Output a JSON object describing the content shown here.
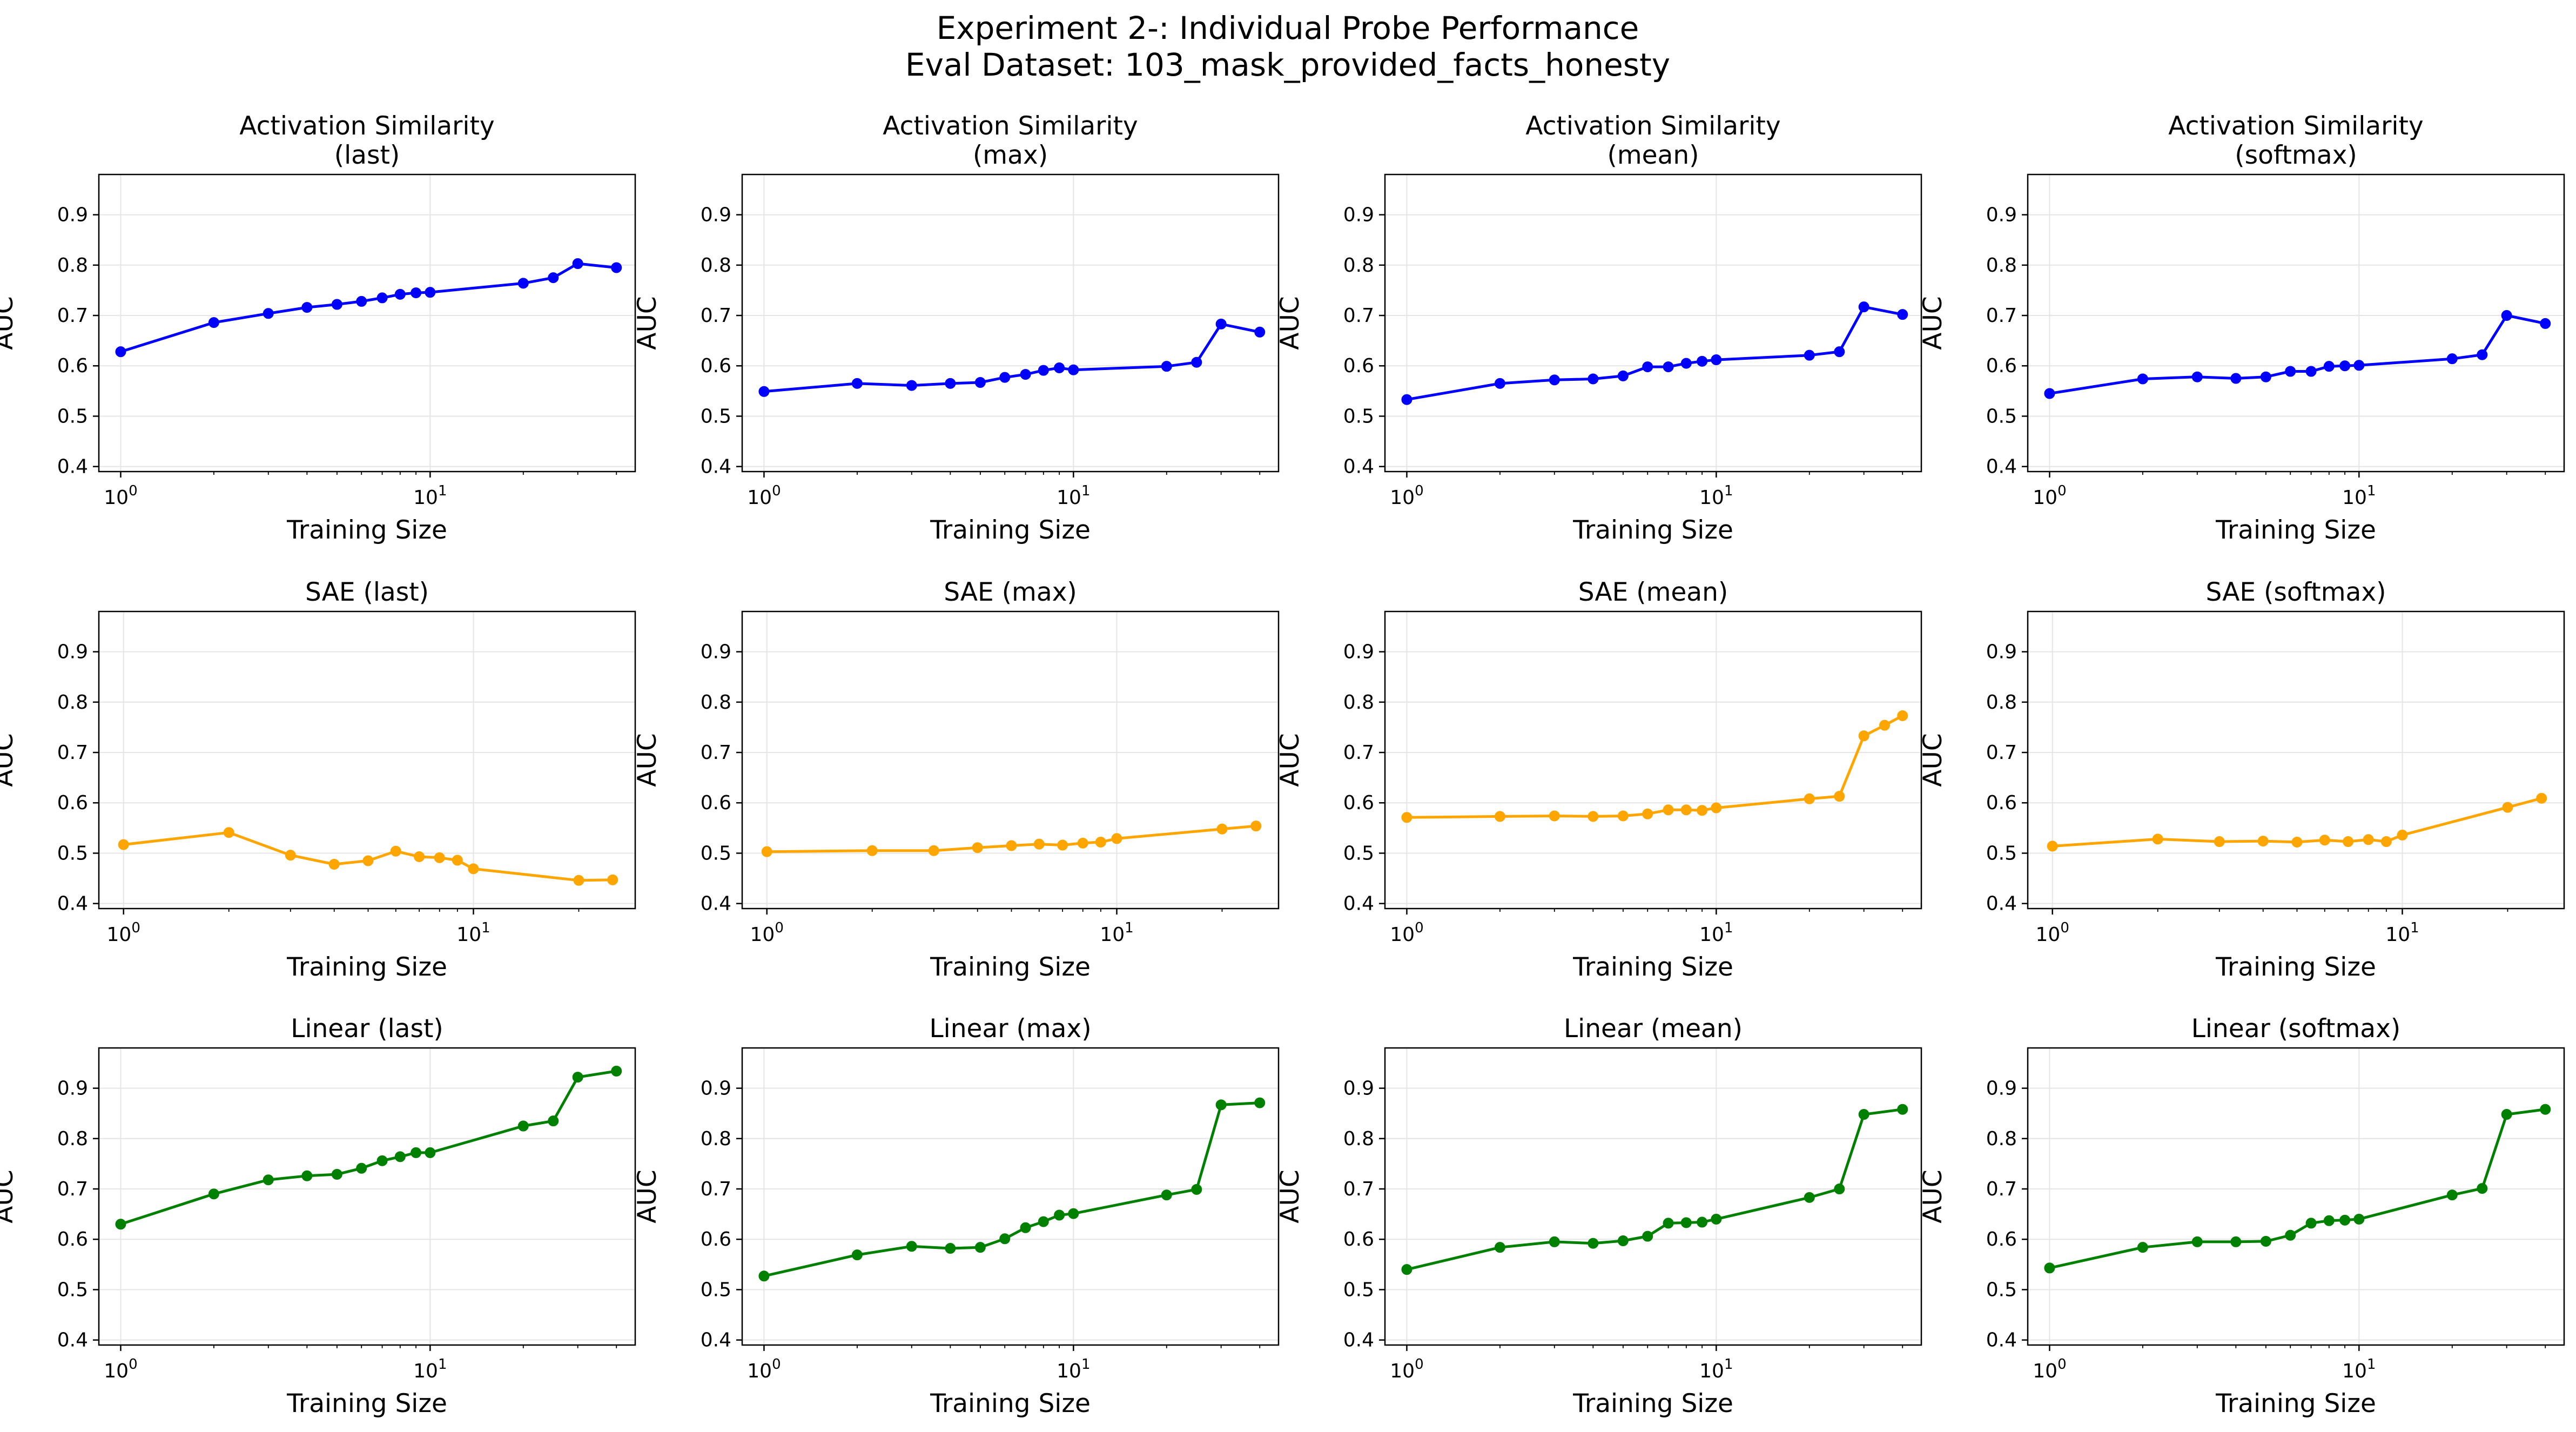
{
  "figure": {
    "title_line1": "Experiment 2-: Individual Probe Performance",
    "title_line2": "Eval Dataset: 103_mask_provided_facts_honesty"
  },
  "colors": {
    "activation": "#0000ff",
    "sae": "#ffa500",
    "linear": "#008000",
    "grid": "#e5e5e5",
    "axes": "#000000"
  },
  "chart_data": [
    {
      "type": "line",
      "title": "Activation Similarity\n(last)",
      "xlabel": "Training Size",
      "ylabel": "AUC",
      "xscale": "log",
      "xlim": [
        0.85,
        46
      ],
      "ylim": [
        0.39,
        0.98
      ],
      "yticks": [
        0.4,
        0.5,
        0.6,
        0.7,
        0.8,
        0.9
      ],
      "xticks": [
        "10^0",
        "10^1"
      ],
      "grid": true,
      "color": "blue",
      "marker": "circle",
      "x": [
        1,
        2,
        3,
        4,
        5,
        6,
        7,
        8,
        9,
        10,
        20,
        25,
        30,
        40
      ],
      "y": [
        0.628,
        0.686,
        0.704,
        0.716,
        0.722,
        0.728,
        0.735,
        0.742,
        0.745,
        0.746,
        0.764,
        0.775,
        0.803,
        0.795
      ]
    },
    {
      "type": "line",
      "title": "Activation Similarity\n(max)",
      "xlabel": "Training Size",
      "ylabel": "AUC",
      "xscale": "log",
      "xlim": [
        0.85,
        46
      ],
      "ylim": [
        0.39,
        0.98
      ],
      "yticks": [
        0.4,
        0.5,
        0.6,
        0.7,
        0.8,
        0.9
      ],
      "xticks": [
        "10^0",
        "10^1"
      ],
      "grid": true,
      "color": "blue",
      "marker": "circle",
      "x": [
        1,
        2,
        3,
        4,
        5,
        6,
        7,
        8,
        9,
        10,
        20,
        25,
        30,
        40
      ],
      "y": [
        0.549,
        0.565,
        0.561,
        0.565,
        0.567,
        0.577,
        0.583,
        0.591,
        0.596,
        0.592,
        0.599,
        0.607,
        0.683,
        0.667
      ]
    },
    {
      "type": "line",
      "title": "Activation Similarity\n(mean)",
      "xlabel": "Training Size",
      "ylabel": "AUC",
      "xscale": "log",
      "xlim": [
        0.85,
        46
      ],
      "ylim": [
        0.39,
        0.98
      ],
      "yticks": [
        0.4,
        0.5,
        0.6,
        0.7,
        0.8,
        0.9
      ],
      "xticks": [
        "10^0",
        "10^1"
      ],
      "grid": true,
      "color": "blue",
      "marker": "circle",
      "x": [
        1,
        2,
        3,
        4,
        5,
        6,
        7,
        8,
        9,
        10,
        20,
        25,
        30,
        40
      ],
      "y": [
        0.533,
        0.565,
        0.572,
        0.574,
        0.58,
        0.598,
        0.598,
        0.605,
        0.609,
        0.612,
        0.621,
        0.628,
        0.717,
        0.702
      ]
    },
    {
      "type": "line",
      "title": "Activation Similarity\n(softmax)",
      "xlabel": "Training Size",
      "ylabel": "AUC",
      "xscale": "log",
      "xlim": [
        0.85,
        46
      ],
      "ylim": [
        0.39,
        0.98
      ],
      "yticks": [
        0.4,
        0.5,
        0.6,
        0.7,
        0.8,
        0.9
      ],
      "xticks": [
        "10^0",
        "10^1"
      ],
      "grid": true,
      "color": "blue",
      "marker": "circle",
      "x": [
        1,
        2,
        3,
        4,
        5,
        6,
        7,
        8,
        9,
        10,
        20,
        25,
        30,
        40
      ],
      "y": [
        0.545,
        0.574,
        0.578,
        0.575,
        0.578,
        0.589,
        0.589,
        0.599,
        0.6,
        0.601,
        0.614,
        0.622,
        0.7,
        0.684
      ]
    },
    {
      "type": "line",
      "title": "SAE (last)",
      "xlabel": "Training Size",
      "ylabel": "AUC",
      "xscale": "log",
      "xlim": [
        0.85,
        29
      ],
      "ylim": [
        0.39,
        0.98
      ],
      "yticks": [
        0.4,
        0.5,
        0.6,
        0.7,
        0.8,
        0.9
      ],
      "xticks": [
        "10^0",
        "10^1"
      ],
      "grid": true,
      "color": "orange",
      "marker": "circle",
      "x": [
        1,
        2,
        3,
        4,
        5,
        6,
        7,
        8,
        9,
        10,
        20,
        25
      ],
      "y": [
        0.517,
        0.541,
        0.496,
        0.478,
        0.485,
        0.504,
        0.493,
        0.491,
        0.486,
        0.469,
        0.446,
        0.447
      ]
    },
    {
      "type": "line",
      "title": "SAE (max)",
      "xlabel": "Training Size",
      "ylabel": "AUC",
      "xscale": "log",
      "xlim": [
        0.85,
        29
      ],
      "ylim": [
        0.39,
        0.98
      ],
      "yticks": [
        0.4,
        0.5,
        0.6,
        0.7,
        0.8,
        0.9
      ],
      "xticks": [
        "10^0",
        "10^1"
      ],
      "grid": true,
      "color": "orange",
      "marker": "circle",
      "x": [
        1,
        2,
        3,
        4,
        5,
        6,
        7,
        8,
        9,
        10,
        20,
        25
      ],
      "y": [
        0.503,
        0.505,
        0.505,
        0.511,
        0.515,
        0.518,
        0.516,
        0.52,
        0.522,
        0.529,
        0.548,
        0.554
      ]
    },
    {
      "type": "line",
      "title": "SAE (mean)",
      "xlabel": "Training Size",
      "ylabel": "AUC",
      "xscale": "log",
      "xlim": [
        0.85,
        46
      ],
      "ylim": [
        0.39,
        0.98
      ],
      "yticks": [
        0.4,
        0.5,
        0.6,
        0.7,
        0.8,
        0.9
      ],
      "xticks": [
        "10^0",
        "10^1"
      ],
      "grid": true,
      "color": "orange",
      "marker": "circle",
      "x": [
        1,
        2,
        3,
        4,
        5,
        6,
        7,
        8,
        9,
        10,
        20,
        25,
        30,
        35,
        40
      ],
      "y": [
        0.571,
        0.573,
        0.574,
        0.573,
        0.574,
        0.578,
        0.586,
        0.586,
        0.585,
        0.59,
        0.608,
        0.613,
        0.733,
        0.754,
        0.773
      ]
    },
    {
      "type": "line",
      "title": "SAE (softmax)",
      "xlabel": "Training Size",
      "ylabel": "AUC",
      "xscale": "log",
      "xlim": [
        0.85,
        29
      ],
      "ylim": [
        0.39,
        0.98
      ],
      "yticks": [
        0.4,
        0.5,
        0.6,
        0.7,
        0.8,
        0.9
      ],
      "xticks": [
        "10^0",
        "10^1"
      ],
      "grid": true,
      "color": "orange",
      "marker": "circle",
      "x": [
        1,
        2,
        3,
        4,
        5,
        6,
        7,
        8,
        9,
        10,
        20,
        25
      ],
      "y": [
        0.514,
        0.528,
        0.523,
        0.524,
        0.522,
        0.526,
        0.523,
        0.527,
        0.523,
        0.536,
        0.591,
        0.609
      ]
    },
    {
      "type": "line",
      "title": "Linear (last)",
      "xlabel": "Training Size",
      "ylabel": "AUC",
      "xscale": "log",
      "xlim": [
        0.85,
        46
      ],
      "ylim": [
        0.39,
        0.98
      ],
      "yticks": [
        0.4,
        0.5,
        0.6,
        0.7,
        0.8,
        0.9
      ],
      "xticks": [
        "10^0",
        "10^1"
      ],
      "grid": true,
      "color": "green",
      "marker": "circle",
      "x": [
        1,
        2,
        3,
        4,
        5,
        6,
        7,
        8,
        9,
        10,
        20,
        25,
        30,
        40
      ],
      "y": [
        0.63,
        0.69,
        0.718,
        0.726,
        0.729,
        0.741,
        0.756,
        0.764,
        0.772,
        0.772,
        0.825,
        0.835,
        0.922,
        0.934
      ]
    },
    {
      "type": "line",
      "title": "Linear (max)",
      "xlabel": "Training Size",
      "ylabel": "AUC",
      "xscale": "log",
      "xlim": [
        0.85,
        46
      ],
      "ylim": [
        0.39,
        0.98
      ],
      "yticks": [
        0.4,
        0.5,
        0.6,
        0.7,
        0.8,
        0.9
      ],
      "xticks": [
        "10^0",
        "10^1"
      ],
      "grid": true,
      "color": "green",
      "marker": "circle",
      "x": [
        1,
        2,
        3,
        4,
        5,
        6,
        7,
        8,
        9,
        10,
        20,
        25,
        30,
        40
      ],
      "y": [
        0.527,
        0.569,
        0.586,
        0.582,
        0.584,
        0.601,
        0.623,
        0.635,
        0.648,
        0.651,
        0.688,
        0.699,
        0.867,
        0.871
      ]
    },
    {
      "type": "line",
      "title": "Linear (mean)",
      "xlabel": "Training Size",
      "ylabel": "AUC",
      "xscale": "log",
      "xlim": [
        0.85,
        46
      ],
      "ylim": [
        0.39,
        0.98
      ],
      "yticks": [
        0.4,
        0.5,
        0.6,
        0.7,
        0.8,
        0.9
      ],
      "xticks": [
        "10^0",
        "10^1"
      ],
      "grid": true,
      "color": "green",
      "marker": "circle",
      "x": [
        1,
        2,
        3,
        4,
        5,
        6,
        7,
        8,
        9,
        10,
        20,
        25,
        30,
        40
      ],
      "y": [
        0.54,
        0.584,
        0.595,
        0.592,
        0.597,
        0.606,
        0.632,
        0.633,
        0.634,
        0.64,
        0.683,
        0.7,
        0.848,
        0.858
      ]
    },
    {
      "type": "line",
      "title": "Linear (softmax)",
      "xlabel": "Training Size",
      "ylabel": "AUC",
      "xscale": "log",
      "xlim": [
        0.85,
        46
      ],
      "ylim": [
        0.39,
        0.98
      ],
      "yticks": [
        0.4,
        0.5,
        0.6,
        0.7,
        0.8,
        0.9
      ],
      "xticks": [
        "10^0",
        "10^1"
      ],
      "grid": true,
      "color": "green",
      "marker": "circle",
      "x": [
        1,
        2,
        3,
        4,
        5,
        6,
        7,
        8,
        9,
        10,
        20,
        25,
        30,
        40
      ],
      "y": [
        0.543,
        0.584,
        0.595,
        0.595,
        0.596,
        0.608,
        0.632,
        0.637,
        0.638,
        0.64,
        0.688,
        0.701,
        0.848,
        0.858
      ]
    }
  ]
}
